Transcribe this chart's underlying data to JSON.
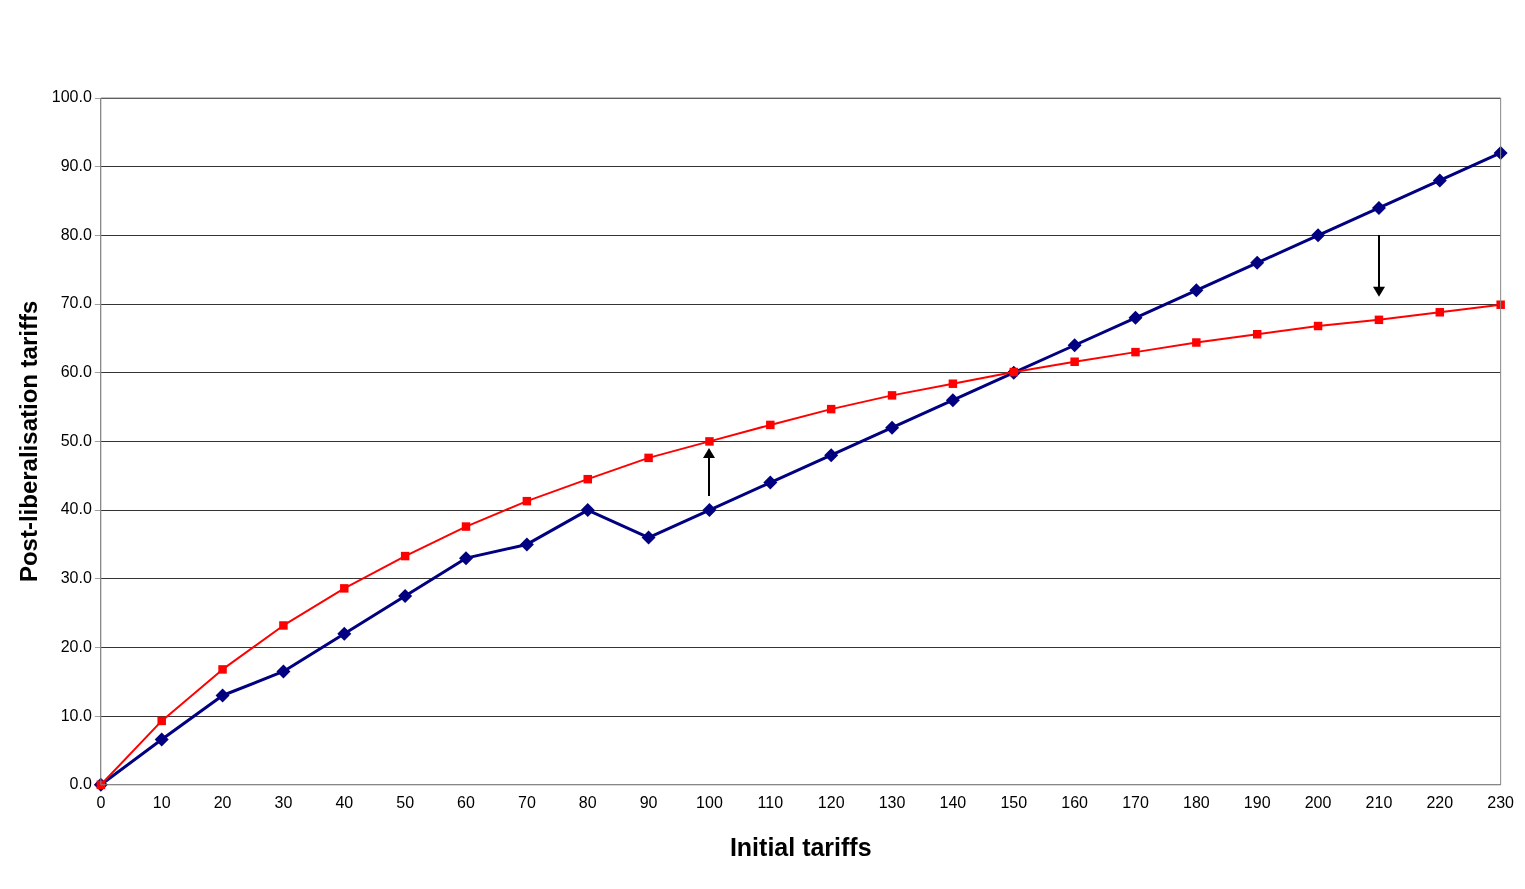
{
  "chart_data": {
    "type": "line",
    "xlabel": "Initial tariffs",
    "ylabel": "Post-liberalisation tariffs",
    "x": [
      0,
      10,
      20,
      30,
      40,
      50,
      60,
      70,
      80,
      90,
      100,
      110,
      120,
      130,
      140,
      150,
      160,
      170,
      180,
      190,
      200,
      210,
      220,
      230
    ],
    "series": [
      {
        "color": "#000080",
        "marker": "diamond",
        "values": [
          0,
          6.6,
          13,
          16.5,
          22,
          27.5,
          33,
          35,
          40,
          36,
          40,
          44,
          48,
          52,
          56,
          60,
          64,
          68,
          72,
          76,
          80,
          84,
          88,
          92
        ]
      },
      {
        "color": "#ff0000",
        "marker": "square",
        "values": [
          0,
          9.3,
          16.8,
          23.2,
          28.6,
          33.3,
          37.6,
          41.3,
          44.5,
          47.6,
          50,
          52.4,
          54.7,
          56.7,
          58.4,
          60.1,
          61.6,
          63,
          64.4,
          65.6,
          66.8,
          67.7,
          68.8,
          69.9
        ]
      }
    ],
    "xlim": [
      0,
      230
    ],
    "xticks": [
      0,
      10,
      20,
      30,
      40,
      50,
      60,
      70,
      80,
      90,
      100,
      110,
      120,
      130,
      140,
      150,
      160,
      170,
      180,
      190,
      200,
      210,
      220,
      230
    ],
    "ylim": [
      0,
      100
    ],
    "yticks": [
      {
        "value": 0,
        "label": "0.0"
      },
      {
        "value": 10,
        "label": "10.0"
      },
      {
        "value": 20,
        "label": "20.0"
      },
      {
        "value": 30,
        "label": "30.0"
      },
      {
        "value": 40,
        "label": "40.0"
      },
      {
        "value": 50,
        "label": "50.0"
      },
      {
        "value": 60,
        "label": "60.0"
      },
      {
        "value": 70,
        "label": "70.0"
      },
      {
        "value": 80,
        "label": "80.0"
      },
      {
        "value": 90,
        "label": "90.0"
      },
      {
        "value": 100,
        "label": "100.0"
      }
    ],
    "grid": "y",
    "legend": false,
    "line_style": "solid"
  }
}
